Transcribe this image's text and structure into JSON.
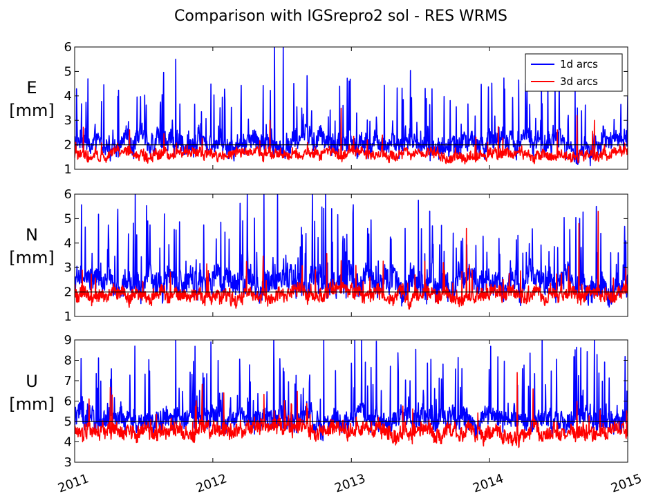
{
  "figure": {
    "title": "Comparison with IGSrepro2 sol - RES WRMS"
  },
  "chart_data": [
    {
      "type": "line",
      "component": "E",
      "ylabel_line1": "E",
      "ylabel_line2": "[mm]",
      "x_range": [
        "2011-01-01",
        "2015-01-01"
      ],
      "xticks": [
        "2011",
        "2012",
        "2013",
        "2014",
        "2015"
      ],
      "ylim": [
        1,
        6
      ],
      "yticks": [
        1,
        2,
        3,
        4,
        5,
        6
      ],
      "reference_line": 2,
      "legend": {
        "position": "top-right",
        "entries": [
          "1d arcs",
          "3d arcs"
        ]
      },
      "series": [
        {
          "name": "1d arcs",
          "color": "#0000ff",
          "baseline": 2.1,
          "noise": 0.45,
          "spike_rate": 0.09,
          "spike_max": 2.6,
          "floor": 1.1,
          "peaks": [
            {
              "date": "2011-02-05",
              "value": 4.7
            },
            {
              "date": "2011-09-25",
              "value": 5.5
            },
            {
              "date": "2012-06-12",
              "value": 6.0
            },
            {
              "date": "2012-07-05",
              "value": 6.0
            },
            {
              "date": "2014-08-15",
              "value": 4.3
            }
          ]
        },
        {
          "name": "3d arcs",
          "color": "#ff0000",
          "baseline": 1.6,
          "noise": 0.22,
          "spike_rate": 0.03,
          "spike_max": 1.2,
          "floor": 1.0,
          "peaks": [
            {
              "date": "2012-12-05",
              "value": 3.5
            },
            {
              "date": "2014-08-20",
              "value": 3.2
            },
            {
              "date": "2014-10-05",
              "value": 3.0
            }
          ]
        }
      ]
    },
    {
      "type": "line",
      "component": "N",
      "ylabel_line1": "N",
      "ylabel_line2": "[mm]",
      "x_range": [
        "2011-01-01",
        "2015-01-01"
      ],
      "xticks": [
        "2011",
        "2012",
        "2013",
        "2014",
        "2015"
      ],
      "ylim": [
        1,
        6
      ],
      "yticks": [
        1,
        2,
        3,
        4,
        5,
        6
      ],
      "reference_line": 2,
      "series": [
        {
          "name": "1d arcs",
          "color": "#0000ff",
          "baseline": 2.4,
          "noise": 0.55,
          "spike_rate": 0.11,
          "spike_max": 3.0,
          "floor": 1.1,
          "peaks": [
            {
              "date": "2011-06-10",
              "value": 6.0
            },
            {
              "date": "2012-04-01",
              "value": 6.0
            },
            {
              "date": "2012-05-15",
              "value": 6.0
            },
            {
              "date": "2012-06-20",
              "value": 6.0
            },
            {
              "date": "2012-09-20",
              "value": 6.0
            },
            {
              "date": "2012-10-25",
              "value": 6.0
            },
            {
              "date": "2014-10-10",
              "value": 5.5
            }
          ]
        },
        {
          "name": "3d arcs",
          "color": "#ff0000",
          "baseline": 1.9,
          "noise": 0.3,
          "spike_rate": 0.04,
          "spike_max": 1.5,
          "floor": 1.1,
          "peaks": [
            {
              "date": "2014-10-15",
              "value": 5.3
            },
            {
              "date": "2014-08-25",
              "value": 4.8
            },
            {
              "date": "2013-11-01",
              "value": 4.6
            }
          ]
        }
      ]
    },
    {
      "type": "line",
      "component": "U",
      "ylabel_line1": "U",
      "ylabel_line2": "[mm]",
      "x_range": [
        "2011-01-01",
        "2015-01-01"
      ],
      "xticks": [
        "2011",
        "2012",
        "2013",
        "2014",
        "2015"
      ],
      "ylim": [
        3,
        9
      ],
      "yticks": [
        3,
        4,
        5,
        6,
        7,
        8,
        9
      ],
      "reference_line": 5,
      "series": [
        {
          "name": "1d arcs",
          "color": "#0000ff",
          "baseline": 5.1,
          "noise": 0.55,
          "spike_rate": 0.1,
          "spike_max": 3.4,
          "floor": 3.2,
          "peaks": [
            {
              "date": "2011-09-25",
              "value": 9.0
            },
            {
              "date": "2012-06-10",
              "value": 9.0
            },
            {
              "date": "2012-10-20",
              "value": 9.0
            },
            {
              "date": "2013-01-10",
              "value": 9.0
            },
            {
              "date": "2014-05-20",
              "value": 9.0
            },
            {
              "date": "2014-10-05",
              "value": 9.0
            }
          ]
        },
        {
          "name": "3d arcs",
          "color": "#ff0000",
          "baseline": 4.5,
          "noise": 0.4,
          "spike_rate": 0.03,
          "spike_max": 2.0,
          "floor": 3.0,
          "peaks": [
            {
              "date": "2014-03-15",
              "value": 7.4
            }
          ]
        }
      ]
    }
  ]
}
